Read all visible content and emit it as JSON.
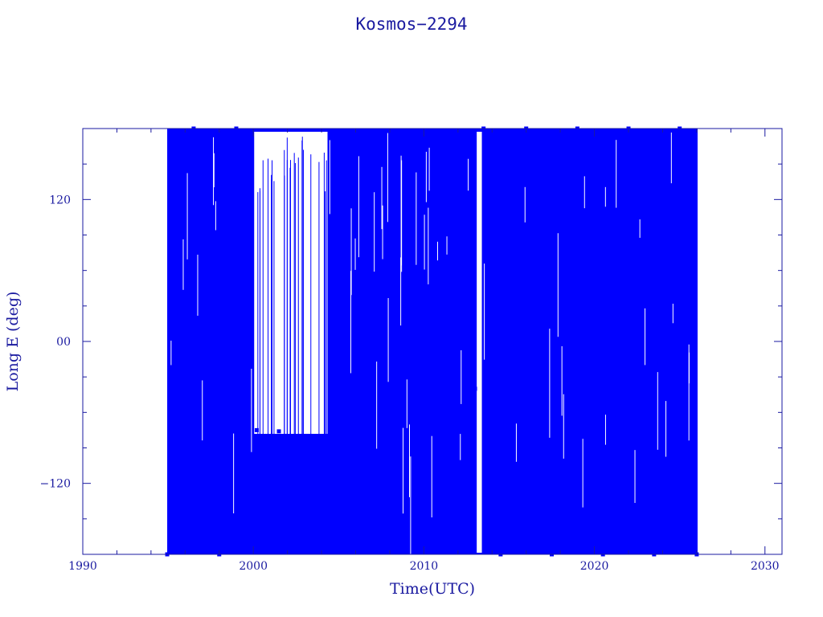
{
  "chart_data": {
    "type": "line",
    "title": "Kosmos−2294",
    "xlabel": "Time(UTC)",
    "ylabel": "Long E (deg)",
    "xlim": [
      1990,
      2031
    ],
    "ylim": [
      -180,
      180
    ],
    "x_ticks": [
      1990,
      2000,
      2010,
      2020,
      2030
    ],
    "x_tick_labels": [
      "1990",
      "2000",
      "2010",
      "2020",
      "2030"
    ],
    "y_ticks": [
      -120,
      0,
      120
    ],
    "y_tick_labels": [
      "−120",
      "00",
      "120"
    ],
    "grid": false,
    "legend": "none",
    "series_color": "#0000ff",
    "axis_color": "#1a1aa0",
    "series": [
      {
        "x": [
          1994.95,
          1996.5,
          1998.0,
          1999.0,
          2000.2,
          2001.5,
          2002.5,
          2003.5,
          2004.3,
          2005.5,
          2007.0,
          2008.5,
          2010.0,
          2011.5,
          2013.0,
          2013.5,
          2014.5,
          2016.0,
          2017.5,
          2019.0,
          2020.5,
          2022.0,
          2023.5,
          2025.0,
          2026.0
        ],
        "y": [
          -180,
          180,
          -180,
          180,
          -75,
          -76,
          -98,
          -100,
          -82,
          -60,
          -40,
          -60,
          40,
          60,
          -40,
          180,
          -180,
          180,
          -180,
          180,
          -180,
          180,
          -180,
          180,
          -180
        ]
      }
    ],
    "data_span": [
      1994.95,
      2026.05
    ],
    "gap_intervals": [
      [
        2000.05,
        2004.35
      ],
      [
        2013.1,
        2013.4
      ]
    ]
  }
}
